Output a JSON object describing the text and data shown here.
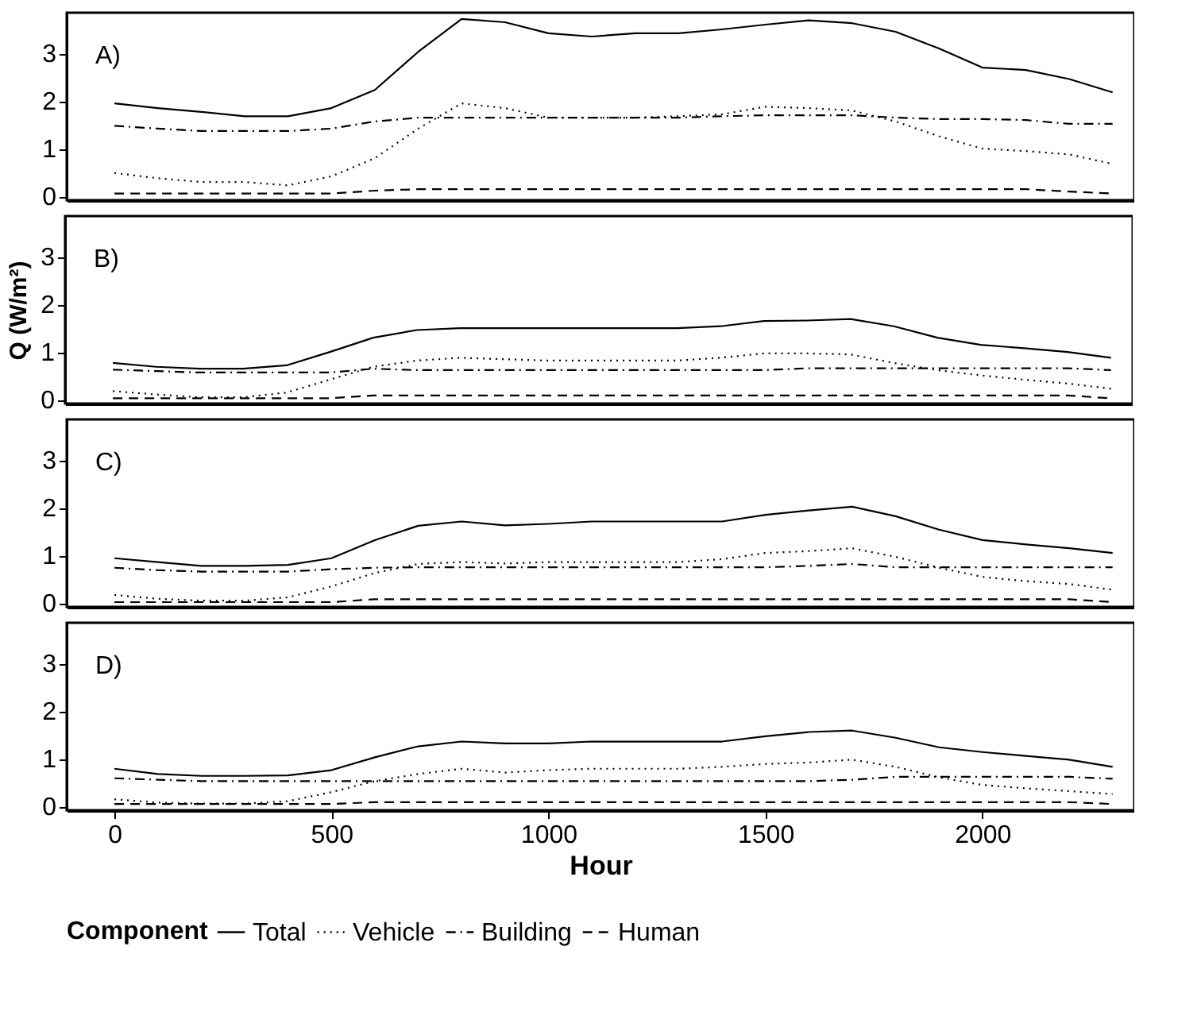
{
  "chart_data": [
    {
      "type": "line",
      "annotations": [
        "A)"
      ],
      "x": [
        0,
        100,
        200,
        300,
        400,
        500,
        600,
        700,
        800,
        900,
        1000,
        1100,
        1200,
        1300,
        1400,
        1500,
        1600,
        1700,
        1800,
        1900,
        2000,
        2100,
        2200,
        2300
      ],
      "xlim": [
        -110,
        2350
      ],
      "ylim": [
        -0.08,
        3.85
      ],
      "yticks": [
        0,
        1,
        2,
        3
      ],
      "tick_labels": "y",
      "grid": false,
      "series": [
        {
          "color": "#000000",
          "line_style": "solid",
          "values": [
            1.95,
            1.85,
            1.77,
            1.68,
            1.68,
            1.85,
            2.23,
            3.03,
            3.72,
            3.65,
            3.42,
            3.35,
            3.42,
            3.42,
            3.5,
            3.6,
            3.69,
            3.63,
            3.45,
            3.1,
            2.7,
            2.65,
            2.46,
            2.18
          ]
        },
        {
          "color": "#000000",
          "line_style": "dotted",
          "values": [
            0.49,
            0.38,
            0.3,
            0.3,
            0.23,
            0.42,
            0.8,
            1.42,
            1.95,
            1.85,
            1.65,
            1.65,
            1.65,
            1.68,
            1.72,
            1.88,
            1.85,
            1.8,
            1.57,
            1.26,
            1.0,
            0.95,
            0.88,
            0.68
          ]
        },
        {
          "color": "#000000",
          "line_style": "dashdot",
          "values": [
            1.48,
            1.42,
            1.37,
            1.37,
            1.37,
            1.42,
            1.57,
            1.65,
            1.65,
            1.65,
            1.65,
            1.65,
            1.65,
            1.65,
            1.68,
            1.7,
            1.7,
            1.7,
            1.65,
            1.62,
            1.62,
            1.6,
            1.52,
            1.52
          ]
        },
        {
          "color": "#000000",
          "line_style": "dashed",
          "values": [
            0.06,
            0.06,
            0.06,
            0.06,
            0.06,
            0.06,
            0.12,
            0.15,
            0.15,
            0.15,
            0.15,
            0.15,
            0.15,
            0.15,
            0.15,
            0.15,
            0.15,
            0.15,
            0.15,
            0.15,
            0.15,
            0.15,
            0.1,
            0.06
          ]
        }
      ]
    },
    {
      "type": "line",
      "annotations": [
        "B)"
      ],
      "ylabel": "Q (W/m²)",
      "x": [
        0,
        100,
        200,
        300,
        400,
        500,
        600,
        700,
        800,
        900,
        1000,
        1100,
        1200,
        1300,
        1400,
        1500,
        1600,
        1700,
        1800,
        1900,
        2000,
        2100,
        2200,
        2300
      ],
      "xlim": [
        -110,
        2350
      ],
      "ylim": [
        -0.08,
        3.85
      ],
      "yticks": [
        0,
        1,
        2,
        3
      ],
      "tick_labels": "y",
      "grid": false,
      "series": [
        {
          "color": "#000000",
          "line_style": "solid",
          "values": [
            0.77,
            0.69,
            0.65,
            0.65,
            0.72,
            1.0,
            1.3,
            1.46,
            1.5,
            1.5,
            1.5,
            1.5,
            1.5,
            1.5,
            1.54,
            1.65,
            1.66,
            1.69,
            1.54,
            1.3,
            1.15,
            1.08,
            1.0,
            0.88
          ]
        },
        {
          "color": "#000000",
          "line_style": "dotted",
          "values": [
            0.18,
            0.11,
            0.05,
            0.05,
            0.15,
            0.42,
            0.69,
            0.82,
            0.88,
            0.85,
            0.82,
            0.82,
            0.82,
            0.82,
            0.88,
            0.97,
            0.97,
            0.95,
            0.77,
            0.62,
            0.51,
            0.42,
            0.34,
            0.23
          ]
        },
        {
          "color": "#000000",
          "line_style": "dashdot",
          "values": [
            0.63,
            0.6,
            0.57,
            0.57,
            0.57,
            0.57,
            0.65,
            0.62,
            0.62,
            0.62,
            0.62,
            0.62,
            0.62,
            0.62,
            0.62,
            0.62,
            0.66,
            0.66,
            0.66,
            0.66,
            0.66,
            0.66,
            0.66,
            0.62
          ]
        },
        {
          "color": "#000000",
          "line_style": "dashed",
          "values": [
            0.03,
            0.03,
            0.03,
            0.03,
            0.03,
            0.03,
            0.09,
            0.09,
            0.09,
            0.09,
            0.09,
            0.09,
            0.09,
            0.09,
            0.09,
            0.09,
            0.09,
            0.09,
            0.09,
            0.09,
            0.09,
            0.09,
            0.09,
            0.03
          ]
        }
      ]
    },
    {
      "type": "line",
      "annotations": [
        "C)"
      ],
      "x": [
        0,
        100,
        200,
        300,
        400,
        500,
        600,
        700,
        800,
        900,
        1000,
        1100,
        1200,
        1300,
        1400,
        1500,
        1600,
        1700,
        1800,
        1900,
        2000,
        2100,
        2200,
        2300
      ],
      "xlim": [
        -110,
        2350
      ],
      "ylim": [
        -0.08,
        3.85
      ],
      "yticks": [
        0,
        1,
        2,
        3
      ],
      "tick_labels": "y",
      "grid": false,
      "series": [
        {
          "color": "#000000",
          "line_style": "solid",
          "values": [
            0.94,
            0.86,
            0.78,
            0.78,
            0.8,
            0.94,
            1.32,
            1.62,
            1.71,
            1.63,
            1.66,
            1.71,
            1.71,
            1.71,
            1.71,
            1.85,
            1.94,
            2.02,
            1.82,
            1.54,
            1.32,
            1.23,
            1.15,
            1.05
          ]
        },
        {
          "color": "#000000",
          "line_style": "dotted",
          "values": [
            0.17,
            0.09,
            0.05,
            0.05,
            0.12,
            0.35,
            0.63,
            0.82,
            0.86,
            0.83,
            0.86,
            0.86,
            0.86,
            0.86,
            0.92,
            1.05,
            1.09,
            1.15,
            0.97,
            0.74,
            0.55,
            0.46,
            0.4,
            0.28
          ]
        },
        {
          "color": "#000000",
          "line_style": "dashdot",
          "values": [
            0.74,
            0.69,
            0.66,
            0.66,
            0.66,
            0.71,
            0.74,
            0.75,
            0.75,
            0.75,
            0.75,
            0.75,
            0.75,
            0.75,
            0.75,
            0.75,
            0.78,
            0.82,
            0.75,
            0.75,
            0.75,
            0.75,
            0.75,
            0.75
          ]
        },
        {
          "color": "#000000",
          "line_style": "dashed",
          "values": [
            0.02,
            0.02,
            0.02,
            0.02,
            0.02,
            0.02,
            0.08,
            0.08,
            0.08,
            0.08,
            0.08,
            0.08,
            0.08,
            0.08,
            0.08,
            0.08,
            0.08,
            0.08,
            0.08,
            0.08,
            0.08,
            0.08,
            0.08,
            0.02
          ]
        }
      ]
    },
    {
      "type": "line",
      "annotations": [
        "D)"
      ],
      "xlabel": "Hour",
      "legend_title": "Component",
      "x": [
        0,
        100,
        200,
        300,
        400,
        500,
        600,
        700,
        800,
        900,
        1000,
        1100,
        1200,
        1300,
        1400,
        1500,
        1600,
        1700,
        1800,
        1900,
        2000,
        2100,
        2200,
        2300
      ],
      "xlim": [
        -110,
        2350
      ],
      "xticks": [
        0,
        500,
        1000,
        1500,
        2000
      ],
      "ylim": [
        -0.08,
        3.85
      ],
      "yticks": [
        0,
        1,
        2,
        3
      ],
      "grid": false,
      "legend": "bottom",
      "series": [
        {
          "name": "Total",
          "color": "#000000",
          "line_style": "solid",
          "values": [
            0.79,
            0.68,
            0.64,
            0.64,
            0.65,
            0.76,
            1.03,
            1.26,
            1.36,
            1.32,
            1.32,
            1.36,
            1.36,
            1.36,
            1.36,
            1.47,
            1.56,
            1.59,
            1.44,
            1.24,
            1.14,
            1.06,
            0.98,
            0.83
          ]
        },
        {
          "name": "Vehicle",
          "color": "#000000",
          "line_style": "dotted",
          "values": [
            0.15,
            0.08,
            0.06,
            0.06,
            0.11,
            0.3,
            0.53,
            0.68,
            0.79,
            0.71,
            0.76,
            0.79,
            0.79,
            0.79,
            0.83,
            0.89,
            0.92,
            0.98,
            0.83,
            0.61,
            0.45,
            0.38,
            0.32,
            0.26
          ]
        },
        {
          "name": "Building",
          "color": "#000000",
          "line_style": "dashdot",
          "values": [
            0.59,
            0.56,
            0.53,
            0.53,
            0.53,
            0.53,
            0.53,
            0.53,
            0.53,
            0.53,
            0.53,
            0.53,
            0.53,
            0.53,
            0.53,
            0.53,
            0.53,
            0.56,
            0.62,
            0.62,
            0.62,
            0.62,
            0.62,
            0.58
          ]
        },
        {
          "name": "Human",
          "color": "#000000",
          "line_style": "dashed",
          "values": [
            0.05,
            0.05,
            0.05,
            0.05,
            0.05,
            0.05,
            0.09,
            0.09,
            0.09,
            0.09,
            0.09,
            0.09,
            0.09,
            0.09,
            0.09,
            0.09,
            0.09,
            0.09,
            0.09,
            0.09,
            0.09,
            0.09,
            0.09,
            0.05
          ]
        }
      ]
    }
  ]
}
